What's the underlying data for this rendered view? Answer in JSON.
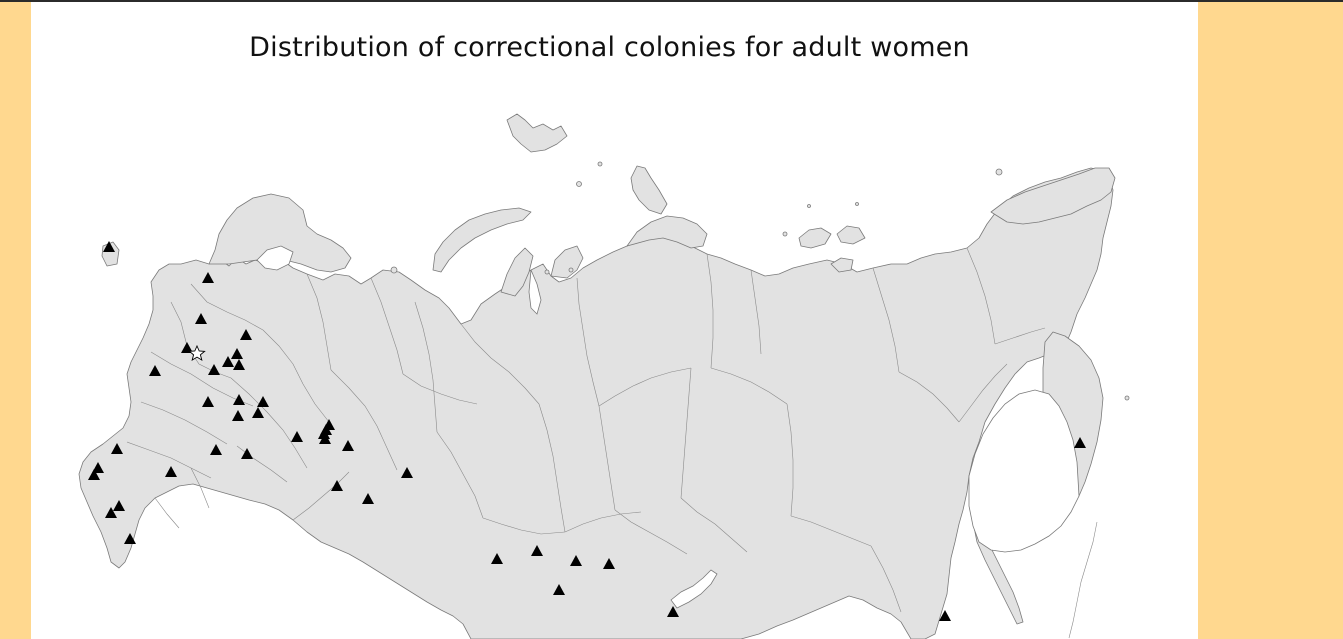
{
  "title": "Distribution of correctional colonies for adult women",
  "colors": {
    "background_side": "#ffd88f",
    "slide": "#ffffff",
    "land": "#e2e2e2",
    "border": "#7a7a7a",
    "marker": "#000000"
  },
  "legend": null,
  "map": {
    "country": "Russia",
    "marker_symbol": "black triangle",
    "capital_symbol": "outlined star",
    "colony_count": 44
  }
}
